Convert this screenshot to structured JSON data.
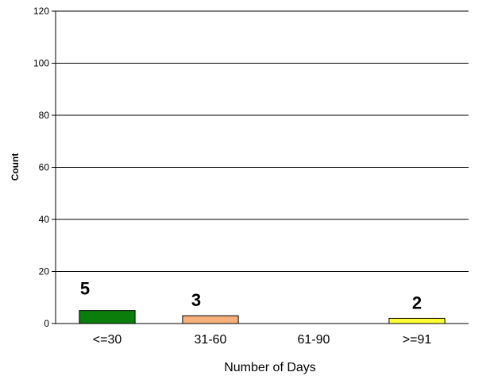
{
  "chart_data": {
    "type": "bar",
    "title": "",
    "xlabel": "Number of Days",
    "ylabel": "Count",
    "categories": [
      "<=30",
      "31-60",
      "61-90",
      ">=91"
    ],
    "values": [
      5,
      3,
      0,
      2
    ],
    "data_labels": [
      "5",
      "3",
      "",
      "2"
    ],
    "bar_colors": [
      "#0a7d0a",
      "#f8b07a",
      "#ffffff",
      "#ffff33"
    ],
    "ylim": [
      0,
      120
    ],
    "yticks": [
      0,
      20,
      40,
      60,
      80,
      100,
      120
    ],
    "grid": true,
    "legend": "none"
  }
}
